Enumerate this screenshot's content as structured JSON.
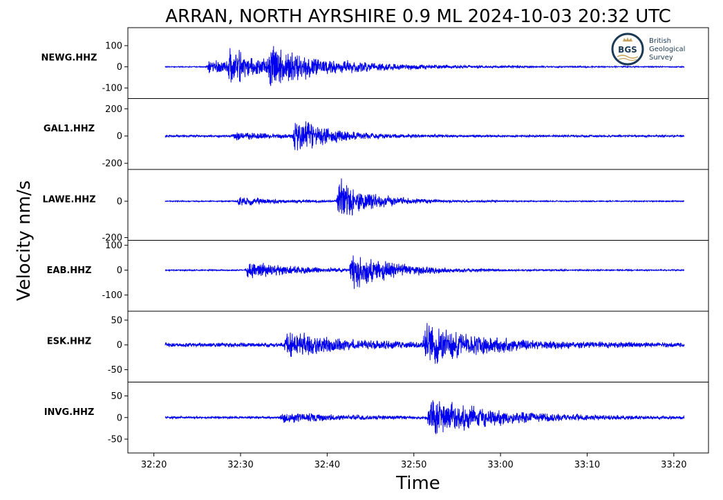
{
  "chart_data": {
    "type": "line",
    "title": "ARRAN, NORTH AYRSHIRE 0.9 ML   2024-10-03 20:32 UTC",
    "xlabel": "Time",
    "ylabel": "Velocity nm/s",
    "x_range_seconds": [
      1937,
      2004
    ],
    "x_ticks": [
      {
        "value": 1940,
        "label": "32:20"
      },
      {
        "value": 1950,
        "label": "32:30"
      },
      {
        "value": 1960,
        "label": "32:40"
      },
      {
        "value": 1970,
        "label": "32:50"
      },
      {
        "value": 1980,
        "label": "33:00"
      },
      {
        "value": 1990,
        "label": "33:10"
      },
      {
        "value": 2000,
        "label": "33:20"
      }
    ],
    "line_color": "#0000ee",
    "grid": false,
    "series": [
      {
        "name": "NEWG.HHZ",
        "ylim": [
          -150,
          185
        ],
        "yticks": [
          {
            "value": 100,
            "label": "100"
          },
          {
            "value": 0,
            "label": "0"
          },
          {
            "value": -100,
            "label": "-100"
          }
        ],
        "noise": 4,
        "events": [
          {
            "t": 1946.0,
            "amp": 60,
            "decay": 10
          },
          {
            "t": 1948.5,
            "amp": 135,
            "decay": 2.5
          },
          {
            "t": 1953.0,
            "amp": 130,
            "decay": 7
          }
        ]
      },
      {
        "name": "GAL1.HHZ",
        "ylim": [
          -245,
          275
        ],
        "yticks": [
          {
            "value": 200,
            "label": "200"
          },
          {
            "value": 0,
            "label": "0"
          },
          {
            "value": -200,
            "label": "-200"
          }
        ],
        "noise": 12,
        "events": [
          {
            "t": 1949.0,
            "amp": 45,
            "decay": 6
          },
          {
            "t": 1956.0,
            "amp": 230,
            "decay": 4
          }
        ]
      },
      {
        "name": "LAWE.HHZ",
        "ylim": [
          -215,
          175
        ],
        "yticks": [
          {
            "value": 0,
            "label": "0"
          },
          {
            "value": -200,
            "label": "-200"
          }
        ],
        "noise": 5,
        "events": [
          {
            "t": 1949.5,
            "amp": 40,
            "decay": 5
          },
          {
            "t": 1961.0,
            "amp": 195,
            "decay": 4
          }
        ]
      },
      {
        "name": "EAB.HHZ",
        "ylim": [
          -165,
          120
        ],
        "yticks": [
          {
            "value": 100,
            "label": "100"
          },
          {
            "value": 0,
            "label": "0"
          },
          {
            "value": -100,
            "label": "-100"
          }
        ],
        "noise": 4,
        "events": [
          {
            "t": 1950.5,
            "amp": 60,
            "decay": 6
          },
          {
            "t": 1962.5,
            "amp": 125,
            "decay": 5
          }
        ]
      },
      {
        "name": "ESK.HHZ",
        "ylim": [
          -75,
          68
        ],
        "yticks": [
          {
            "value": 50,
            "label": "50"
          },
          {
            "value": 0,
            "label": "0"
          },
          {
            "value": -50,
            "label": "-50"
          }
        ],
        "noise": 7,
        "events": [
          {
            "t": 1955.0,
            "amp": 45,
            "decay": 6
          },
          {
            "t": 1971.0,
            "amp": 62,
            "decay": 7
          }
        ]
      },
      {
        "name": "INVG.HHZ",
        "ylim": [
          -82,
          82
        ],
        "yticks": [
          {
            "value": 50,
            "label": "50"
          },
          {
            "value": 0,
            "label": "0"
          },
          {
            "value": -50,
            "label": "-50"
          }
        ],
        "noise": 4,
        "events": [
          {
            "t": 1954.5,
            "amp": 18,
            "decay": 8
          },
          {
            "t": 1971.5,
            "amp": 72,
            "decay": 8
          }
        ]
      }
    ]
  },
  "logo": {
    "initials": "BGS",
    "lines": [
      "British",
      "Geological",
      "Survey"
    ],
    "ring_color": "#1b3a55",
    "accent_color": "#c8a25a"
  }
}
